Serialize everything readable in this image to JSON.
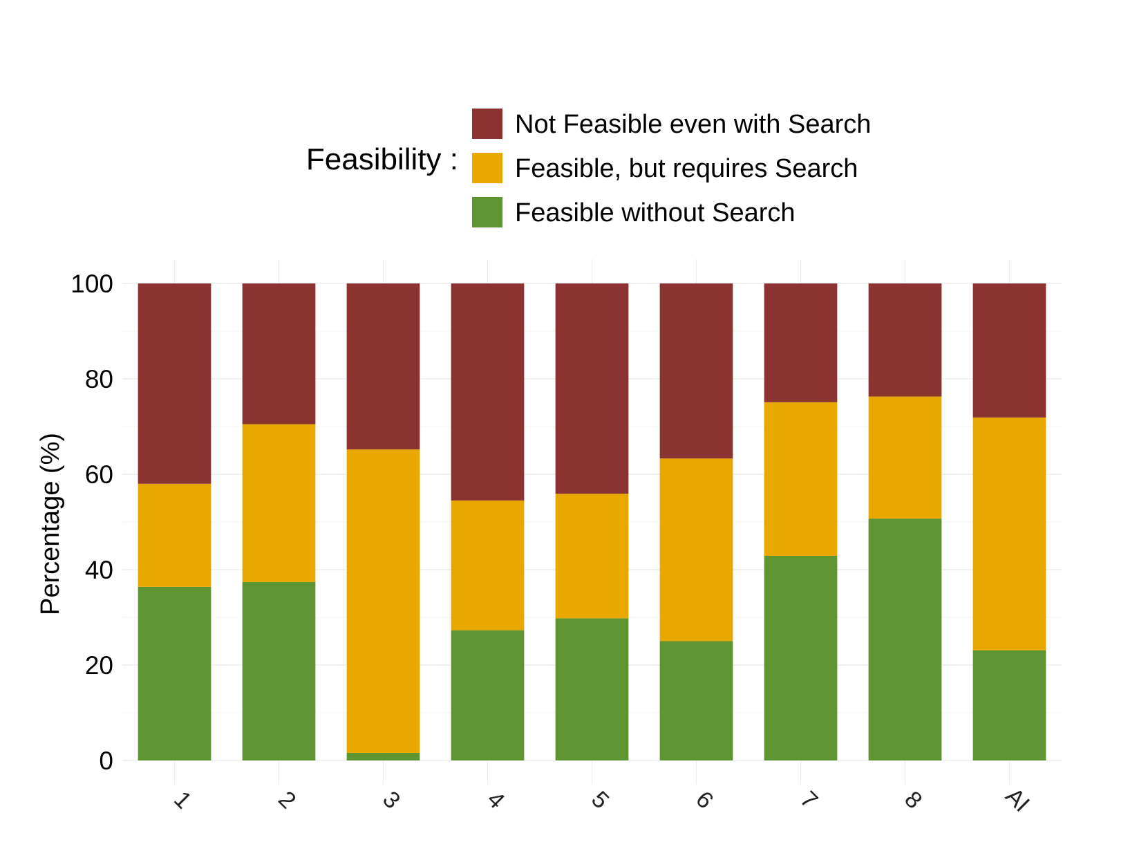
{
  "chart_data": {
    "type": "bar",
    "stacked": true,
    "title": "",
    "xlabel": "",
    "ylabel": "Percentage (%)",
    "ylim": [
      0,
      100
    ],
    "yticks": [
      "0",
      "20",
      "40",
      "60",
      "80",
      "100"
    ],
    "grid": true,
    "legend": {
      "title": "Feasibility :",
      "placement": "top",
      "entries": [
        "Not Feasible even with Search",
        "Feasible, but requires Search",
        "Feasible without Search"
      ]
    },
    "categories": [
      "1",
      "2",
      "3",
      "4",
      "5",
      "6",
      "7",
      "8",
      "AI"
    ],
    "series": [
      {
        "name": "Feasible without Search",
        "color": "#5E9432",
        "values": [
          36.4,
          37.4,
          1.6,
          27.3,
          29.8,
          25.0,
          42.9,
          50.7,
          23.1
        ]
      },
      {
        "name": "Feasible, but requires Search",
        "color": "#E8A800",
        "values": [
          21.6,
          33.1,
          63.6,
          27.2,
          26.1,
          38.3,
          32.2,
          25.6,
          48.8
        ]
      },
      {
        "name": "Not Feasible even with Search",
        "color": "#8B3331",
        "values": [
          42.0,
          29.5,
          34.8,
          45.5,
          44.1,
          36.7,
          24.9,
          23.7,
          28.1
        ]
      }
    ]
  }
}
